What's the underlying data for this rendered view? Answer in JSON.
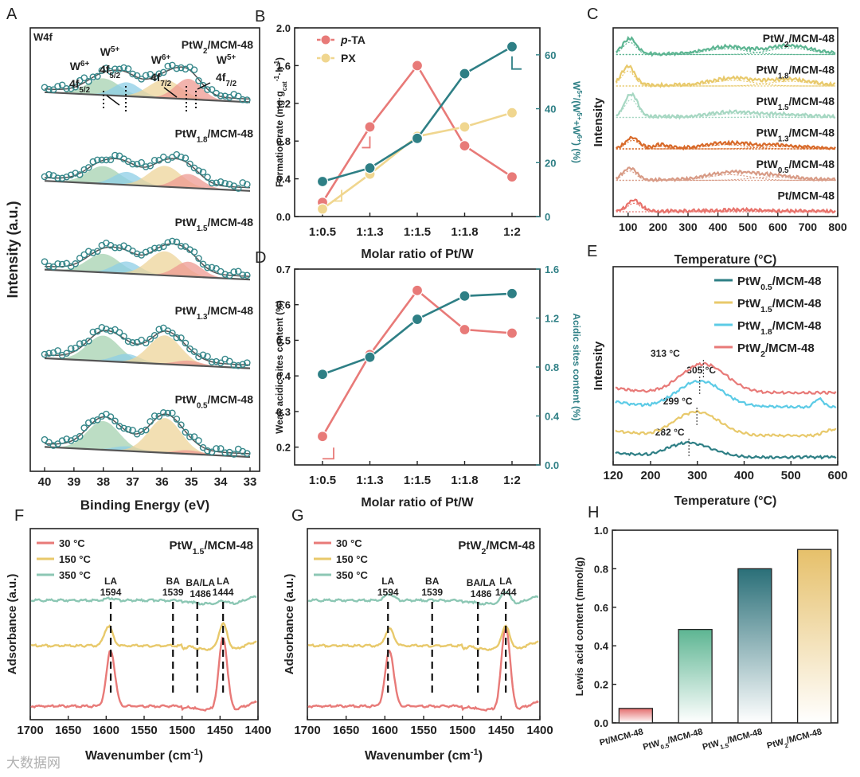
{
  "figure": {
    "watermark": "大数据网"
  },
  "chart_data": [
    {
      "id": "A",
      "panel_label": "A",
      "type": "line",
      "subtype": "stacked XPS spectra",
      "title": "W4f",
      "xlabel": "Binding Energy (eV)",
      "ylabel": "Intensity (a.u.)",
      "xlim": [
        40,
        33
      ],
      "xticks": [
        40,
        39,
        38,
        37,
        36,
        35,
        34,
        33
      ],
      "colors": {
        "raw": "#35878a",
        "fit": "#555555",
        "w6_52": "#a6d2b0",
        "w5_52": "#8ecde6",
        "w6_72": "#edd49a",
        "w5_72": "#ee9a92"
      },
      "annotations": [
        {
          "sup": "6+",
          "sub": "5/2",
          "peak": "W",
          "orb": "4f"
        },
        {
          "sup": "5+",
          "sub": "5/2",
          "peak": "W",
          "orb": "4f"
        },
        {
          "sup": "6+",
          "sub": "7/2",
          "peak": "W",
          "orb": "4f"
        },
        {
          "sup": "5+",
          "sub": "7/2",
          "peak": "W",
          "orb": "4f"
        }
      ],
      "peak_positions_eV": {
        "w6_52": 38.0,
        "w5_52": 37.2,
        "w6_72": 35.9,
        "w5_72": 35.1
      },
      "spectra": [
        {
          "base": "PtW",
          "sub": "2",
          "support": "/MCM-48",
          "amplitudes": [
            0.36,
            0.3,
            0.4,
            0.44
          ]
        },
        {
          "base": "PtW",
          "sub": "1.8",
          "support": "/MCM-48",
          "amplitudes": [
            0.38,
            0.28,
            0.45,
            0.3
          ]
        },
        {
          "base": "PtW",
          "sub": "1.5",
          "support": "/MCM-48",
          "amplitudes": [
            0.4,
            0.26,
            0.52,
            0.32
          ]
        },
        {
          "base": "PtW",
          "sub": "1.3",
          "support": "/MCM-48",
          "amplitudes": [
            0.55,
            0.18,
            0.62,
            0.1
          ]
        },
        {
          "base": "PtW",
          "sub": "0.5",
          "support": "/MCM-48",
          "amplitudes": [
            0.62,
            0.1,
            0.75,
            0.08
          ]
        }
      ]
    },
    {
      "id": "B",
      "panel_label": "B",
      "type": "line",
      "categories": [
        "1:0.5",
        "1:1.3",
        "1:1.5",
        "1:1.8",
        "1:2"
      ],
      "xlabel": "Molar ratio of Pt/W",
      "ylabel": "Formation rate (mg·g_cat⁻¹·h⁻¹)",
      "ylabel_parts": {
        "a": "Formation rate (mg·g",
        "sub": "cat",
        "sup1": "-1",
        "mid": "·h",
        "sup2": "-1",
        "end": ")"
      },
      "y2label_parts": {
        "a": "W",
        "sup1": "5+",
        "b": "/(W",
        "sup2": "5+",
        "c": "+W",
        "sup3": "6+",
        "d": ") (%)"
      },
      "ylim": [
        0,
        2.0
      ],
      "yticks": [
        0.0,
        0.4,
        0.8,
        1.2,
        1.6,
        2.0
      ],
      "y2lim": [
        0,
        70
      ],
      "y2ticks": [
        0,
        20,
        40,
        60
      ],
      "series": [
        {
          "name": "p-TA",
          "name_italic": "p",
          "name_rest": "-TA",
          "axis": "left",
          "color": "#e87a78",
          "values": [
            0.15,
            0.95,
            1.6,
            0.75,
            0.42
          ]
        },
        {
          "name": "PX",
          "axis": "left",
          "color": "#f0d68f",
          "values": [
            0.08,
            0.45,
            0.85,
            0.95,
            1.1
          ]
        },
        {
          "name": "W5+/(W5++W6+)",
          "axis": "right",
          "color": "#2e7f85",
          "values": [
            13.0,
            18.0,
            29.0,
            53.0,
            63.0
          ]
        }
      ]
    },
    {
      "id": "C",
      "panel_label": "C",
      "type": "line",
      "subtype": "stacked TPD profiles",
      "xlabel": "Temperature (°C)",
      "ylabel": "Intensity",
      "xlim": [
        50,
        800
      ],
      "xticks": [
        100,
        200,
        300,
        400,
        500,
        600,
        700,
        800
      ],
      "curves": [
        {
          "base": "PtW",
          "sub": "2",
          "support": "/MCM-48",
          "color": "#5db592",
          "peaks": [
            [
              105,
              0.65
            ],
            [
              430,
              0.3
            ],
            [
              640,
              0.35
            ]
          ]
        },
        {
          "base": "PtW",
          "sub": "1.8",
          "support": "/MCM-48",
          "color": "#e8c96b",
          "peaks": [
            [
              100,
              0.8
            ],
            [
              450,
              0.3
            ],
            [
              640,
              0.25
            ]
          ]
        },
        {
          "base": "PtW",
          "sub": "1.5",
          "support": "/MCM-48",
          "color": "#a6d7c2",
          "peaks": [
            [
              110,
              0.95
            ],
            [
              450,
              0.2
            ],
            [
              620,
              0.1
            ]
          ]
        },
        {
          "base": "PtW",
          "sub": "1.3",
          "support": "/MCM-48",
          "color": "#d86a2a",
          "peaks": [
            [
              115,
              0.45
            ],
            [
              210,
              0.15
            ],
            [
              430,
              0.22
            ],
            [
              600,
              0.12
            ]
          ]
        },
        {
          "base": "PtW",
          "sub": "0.5",
          "support": "/MCM-48",
          "color": "#d89b86",
          "peaks": [
            [
              105,
              0.5
            ],
            [
              440,
              0.3
            ],
            [
              580,
              0.18
            ]
          ]
        },
        {
          "base": "Pt",
          "sub": "",
          "support": "/MCM-48",
          "color": "#e8726b",
          "peaks": [
            [
              120,
              0.45
            ],
            [
              480,
              0.05
            ]
          ]
        }
      ]
    },
    {
      "id": "D",
      "panel_label": "D",
      "type": "line",
      "categories": [
        "1:0.5",
        "1:1.3",
        "1:1.5",
        "1:1.8",
        "1:2"
      ],
      "xlabel": "Molar ratio of Pt/W",
      "ylabel": "Weak acidic sites content (%)",
      "y2label": "Acidic sites content (%)",
      "ylim": [
        0.15,
        0.7
      ],
      "yticks": [
        0.2,
        0.3,
        0.4,
        0.5,
        0.6,
        0.7
      ],
      "y2lim": [
        0.0,
        1.6
      ],
      "y2ticks": [
        0.0,
        0.4,
        0.8,
        1.2,
        1.6
      ],
      "series": [
        {
          "name": "Weak acidic sites content",
          "axis": "left",
          "color": "#e87a78",
          "values": [
            0.23,
            0.46,
            0.64,
            0.53,
            0.52
          ]
        },
        {
          "name": "Acidic sites content",
          "axis": "right",
          "color": "#2e7f85",
          "values": [
            0.74,
            0.88,
            1.19,
            1.38,
            1.4
          ]
        }
      ]
    },
    {
      "id": "E",
      "panel_label": "E",
      "type": "line",
      "subtype": "stacked NH3-TPD",
      "xlabel": "Temperature (°C)",
      "ylabel": "Intensity",
      "xlim": [
        120,
        600
      ],
      "xticks": [
        120,
        200,
        300,
        400,
        500,
        600
      ],
      "curves": [
        {
          "base": "PtW",
          "sub": "0.5",
          "support": "/MCM-48",
          "color": "#2e7f85",
          "peak_label": "282 °C",
          "peak": 282,
          "amp": 0.3
        },
        {
          "base": "PtW",
          "sub": "1.5",
          "support": "/MCM-48",
          "color": "#e8c96b",
          "peak_label": "299 °C",
          "peak": 299,
          "amp": 0.5
        },
        {
          "base": "PtW",
          "sub": "1.8",
          "support": "/MCM-48",
          "color": "#5ccbe6",
          "peak_label": "305 °C",
          "peak": 305,
          "amp": 0.55
        },
        {
          "base": "PtW",
          "sub": "2",
          "support": "/MCM-48",
          "color": "#e87a78",
          "peak_label": "313 °C",
          "peak": 313,
          "amp": 0.6
        }
      ]
    },
    {
      "id": "F",
      "panel_label": "F",
      "type": "line",
      "subtype": "pyridine IR",
      "title_base": "PtW",
      "title_sub": "1.5",
      "title_support": "/MCM-48",
      "xlabel": "Wavenumber (cm⁻¹)",
      "xlabel_main": "Wavenumber (cm",
      "xlabel_sup": "-1",
      "xlabel_end": ")",
      "ylabel": "Adsorbance (a.u.)",
      "xlim": [
        1700,
        1400
      ],
      "xticks": [
        1700,
        1650,
        1600,
        1550,
        1500,
        1450,
        1400
      ],
      "legend": [
        {
          "name": "30 °C",
          "color": "#e87a78"
        },
        {
          "name": "150 °C",
          "color": "#e8c96b"
        },
        {
          "name": "350 °C",
          "color": "#8cc7b4"
        }
      ],
      "bands": [
        {
          "name": "LA",
          "wn": "1594",
          "x": 1594
        },
        {
          "name": "BA",
          "wn": "1539",
          "x": 1512
        },
        {
          "name": "BA/LA",
          "wn": "1486",
          "x": 1480
        },
        {
          "name": "LA",
          "wn": "1444",
          "x": 1446
        }
      ],
      "peaks": {
        "30": [
          [
            1594,
            1.0
          ],
          [
            1446,
            1.3
          ]
        ],
        "150": [
          [
            1597,
            0.35
          ],
          [
            1446,
            0.45
          ]
        ],
        "350": [
          [
            1594,
            0.04
          ],
          [
            1446,
            0.05
          ]
        ]
      }
    },
    {
      "id": "G",
      "panel_label": "G",
      "type": "line",
      "subtype": "pyridine IR",
      "title_base": "PtW",
      "title_sub": "2",
      "title_support": "/MCM-48",
      "xlabel": "Wavenumber (cm⁻¹)",
      "xlabel_main": "Wavenumber (cm",
      "xlabel_sup": "-1",
      "xlabel_end": ")",
      "ylabel": "Adsorbance (a.u.)",
      "xlim": [
        1700,
        1400
      ],
      "xticks": [
        1700,
        1650,
        1600,
        1550,
        1500,
        1450,
        1400
      ],
      "legend": [
        {
          "name": "30 °C",
          "color": "#e87a78"
        },
        {
          "name": "150 °C",
          "color": "#e8c96b"
        },
        {
          "name": "350 °C",
          "color": "#8cc7b4"
        }
      ],
      "bands": [
        {
          "name": "LA",
          "wn": "1594",
          "x": 1596
        },
        {
          "name": "BA",
          "wn": "1539",
          "x": 1539
        },
        {
          "name": "BA/LA",
          "wn": "1486",
          "x": 1480
        },
        {
          "name": "LA",
          "wn": "1444",
          "x": 1444
        }
      ],
      "peaks": {
        "30": [
          [
            1594,
            1.0
          ],
          [
            1444,
            1.5
          ]
        ],
        "150": [
          [
            1594,
            0.3
          ],
          [
            1444,
            0.4
          ]
        ],
        "350": [
          [
            1594,
            0.12
          ],
          [
            1444,
            0.22
          ]
        ]
      }
    },
    {
      "id": "H",
      "panel_label": "H",
      "type": "bar",
      "ylabel": "Lewis acid content (mmol/g)",
      "ylim": [
        0,
        1.0
      ],
      "yticks": [
        0.0,
        0.2,
        0.4,
        0.6,
        0.8,
        1.0
      ],
      "categories": [
        {
          "base": "Pt",
          "sub": "",
          "support": "/MCM-48"
        },
        {
          "base": "PtW",
          "sub": "0.5",
          "support": "/MCM-48"
        },
        {
          "base": "PtW",
          "sub": "1.5",
          "support": "/MCM-48"
        },
        {
          "base": "PtW",
          "sub": "2",
          "support": "/MCM-48"
        }
      ],
      "values": [
        0.075,
        0.485,
        0.8,
        0.9
      ],
      "colors": [
        [
          "#e46c6c",
          "#ffffff"
        ],
        [
          "#5db592",
          "#ffffff"
        ],
        [
          "#2a6f78",
          "#ffffff"
        ],
        [
          "#e6c06a",
          "#ffffff"
        ]
      ]
    }
  ]
}
